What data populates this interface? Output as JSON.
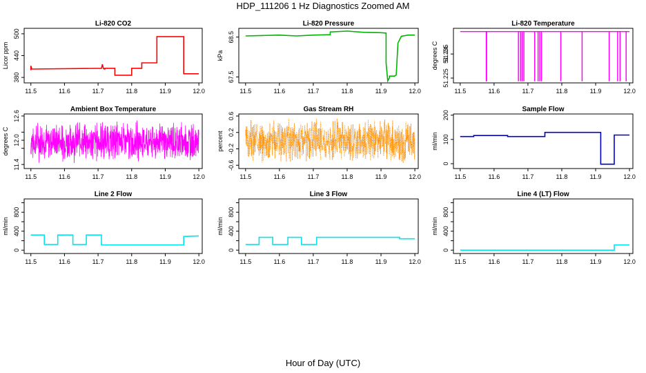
{
  "page": {
    "title": "HDP_111206  1 Hz Diagnostics Zoomed AM",
    "xaxis_label": "Hour of Day (UTC)"
  },
  "chart_data": [
    {
      "id": "co2",
      "type": "line",
      "title": "Li-820 CO2",
      "xlabel": "",
      "ylabel": "Licor ppm",
      "color": "#ff0000",
      "xlim": [
        11.48,
        12.01
      ],
      "ylim": [
        365,
        515
      ],
      "xticks": [
        11.5,
        11.6,
        11.7,
        11.8,
        11.9,
        12.0
      ],
      "yticks": [
        380,
        440,
        500
      ],
      "series": [
        {
          "x": [
            11.5,
            11.5,
            11.502,
            11.502,
            11.71,
            11.713,
            11.716,
            11.72,
            11.72,
            11.75,
            11.75,
            11.8,
            11.8,
            11.83,
            11.83,
            11.875,
            11.875,
            11.955,
            11.955,
            12.0
          ],
          "y": [
            400,
            412,
            406,
            403,
            405,
            416,
            404,
            403,
            405,
            405,
            386,
            386,
            405,
            405,
            420,
            420,
            492,
            492,
            390,
            390
          ]
        }
      ]
    },
    {
      "id": "pressure",
      "type": "line",
      "title": "Li-820 Pressure",
      "xlabel": "",
      "ylabel": "kPa",
      "color": "#00b400",
      "xlim": [
        11.48,
        12.01
      ],
      "ylim": [
        67.35,
        68.72
      ],
      "xticks": [
        11.5,
        11.6,
        11.7,
        11.8,
        11.9,
        12.0
      ],
      "yticks": [
        67.5,
        68.5
      ],
      "series": [
        {
          "x": [
            11.5,
            11.55,
            11.6,
            11.65,
            11.7,
            11.75,
            11.75,
            11.8,
            11.85,
            11.9,
            11.915,
            11.915,
            11.92,
            11.925,
            11.925,
            11.94,
            11.945,
            11.95,
            11.96,
            11.98,
            12.0
          ],
          "y": [
            68.53,
            68.54,
            68.55,
            68.53,
            68.55,
            68.56,
            68.63,
            68.65,
            68.62,
            68.61,
            68.6,
            67.85,
            67.4,
            67.48,
            67.52,
            67.52,
            67.55,
            68.35,
            68.52,
            68.55,
            68.55
          ]
        }
      ]
    },
    {
      "id": "temperature",
      "type": "line",
      "title": "Li-820 Temperature",
      "xlabel": "",
      "ylabel": "degrees C",
      "color": "#ff00ff",
      "xlim": [
        11.48,
        12.01
      ],
      "ylim": [
        51.222,
        51.256
      ],
      "xticks": [
        11.5,
        11.6,
        11.7,
        11.8,
        11.9,
        12.0
      ],
      "yticks": [
        51.225,
        51.24
      ],
      "ytick_labels_extra": [
        "51.235"
      ],
      "baseline": 51.254,
      "dips": [
        11.577,
        11.578,
        11.672,
        11.678,
        11.683,
        11.688,
        11.72,
        11.73,
        11.735,
        11.74,
        11.797,
        11.86,
        11.94,
        11.965,
        11.972,
        11.99
      ],
      "dip_value": 51.223
    },
    {
      "id": "ambient",
      "type": "line",
      "title": "Ambient Box Temperature",
      "xlabel": "",
      "ylabel": "degrees C",
      "color": "#ff00ff",
      "xlim": [
        11.48,
        12.01
      ],
      "ylim": [
        11.3,
        12.65
      ],
      "xticks": [
        11.5,
        11.6,
        11.7,
        11.8,
        11.9,
        12.0
      ],
      "yticks": [
        11.4,
        12.0,
        12.6
      ],
      "ytick_labels": [
        "11.4",
        "12.0",
        "12.6"
      ],
      "ytick_extra": [
        11.8,
        12.2
      ],
      "noise": {
        "center": 11.97,
        "amplitude": 0.55,
        "seed": 7
      }
    },
    {
      "id": "rh",
      "type": "line",
      "title": "Gas Stream RH",
      "xlabel": "",
      "ylabel": "percent",
      "color": "#ff8c00",
      "xlim": [
        11.48,
        12.01
      ],
      "ylim": [
        -0.68,
        0.65
      ],
      "xticks": [
        11.5,
        11.6,
        11.7,
        11.8,
        11.9,
        12.0
      ],
      "yticks": [
        -0.6,
        -0.2,
        0.2,
        0.6
      ],
      "ytick_labels": [
        "-0.6",
        "-0.2",
        "0.2",
        "0.6"
      ],
      "noise": {
        "center": 0.0,
        "amplitude": 0.58,
        "seed": 3
      }
    },
    {
      "id": "sample",
      "type": "line",
      "title": "Sample Flow",
      "xlabel": "",
      "ylabel": "ml/min",
      "color": "#0000cd",
      "xlim": [
        11.48,
        12.01
      ],
      "ylim": [
        -20,
        205
      ],
      "xticks": [
        11.5,
        11.6,
        11.7,
        11.8,
        11.9,
        12.0
      ],
      "yticks": [
        0,
        100,
        200
      ],
      "series": [
        {
          "x": [
            11.5,
            11.54,
            11.54,
            11.64,
            11.64,
            11.75,
            11.75,
            11.915,
            11.915,
            11.955,
            11.955,
            12.0
          ],
          "y": [
            112,
            112,
            116,
            116,
            112,
            112,
            129,
            129,
            -2,
            -2,
            118,
            118
          ]
        }
      ]
    },
    {
      "id": "line2",
      "type": "line",
      "title": "Line 2 Flow",
      "xlabel": "",
      "ylabel": "ml/min",
      "color": "#00e5ee",
      "xlim": [
        11.48,
        12.01
      ],
      "ylim": [
        -70,
        1080
      ],
      "xticks": [
        11.5,
        11.6,
        11.7,
        11.8,
        11.9,
        12.0
      ],
      "yticks": [
        0,
        400,
        800
      ],
      "ytick_extra": [
        200,
        600,
        1000
      ],
      "series": [
        {
          "x": [
            11.5,
            11.54,
            11.54,
            11.58,
            11.58,
            11.625,
            11.625,
            11.665,
            11.665,
            11.71,
            11.71,
            11.955,
            11.955,
            12.0
          ],
          "y": [
            320,
            320,
            120,
            120,
            320,
            320,
            120,
            120,
            320,
            320,
            110,
            110,
            290,
            300
          ]
        }
      ]
    },
    {
      "id": "line3",
      "type": "line",
      "title": "Line 3 Flow",
      "xlabel": "",
      "ylabel": "ml/min",
      "color": "#00e5ee",
      "xlim": [
        11.48,
        12.01
      ],
      "ylim": [
        -70,
        1080
      ],
      "xticks": [
        11.5,
        11.6,
        11.7,
        11.8,
        11.9,
        12.0
      ],
      "yticks": [
        0,
        400,
        800
      ],
      "ytick_extra": [
        200,
        600,
        1000
      ],
      "series": [
        {
          "x": [
            11.5,
            11.54,
            11.54,
            11.58,
            11.58,
            11.625,
            11.625,
            11.665,
            11.665,
            11.71,
            11.71,
            11.955,
            11.955,
            12.0
          ],
          "y": [
            120,
            120,
            270,
            270,
            120,
            120,
            270,
            270,
            120,
            120,
            270,
            270,
            240,
            240
          ]
        }
      ]
    },
    {
      "id": "line4",
      "type": "line",
      "title": "Line 4 (LT) Flow",
      "xlabel": "",
      "ylabel": "ml/min",
      "color": "#00e5ee",
      "xlim": [
        11.48,
        12.01
      ],
      "ylim": [
        -70,
        1080
      ],
      "xticks": [
        11.5,
        11.6,
        11.7,
        11.8,
        11.9,
        12.0
      ],
      "yticks": [
        0,
        400,
        800
      ],
      "ytick_extra": [
        200,
        600,
        1000
      ],
      "series": [
        {
          "x": [
            11.5,
            11.955,
            11.955,
            12.0
          ],
          "y": [
            0,
            0,
            110,
            110
          ]
        }
      ]
    }
  ]
}
